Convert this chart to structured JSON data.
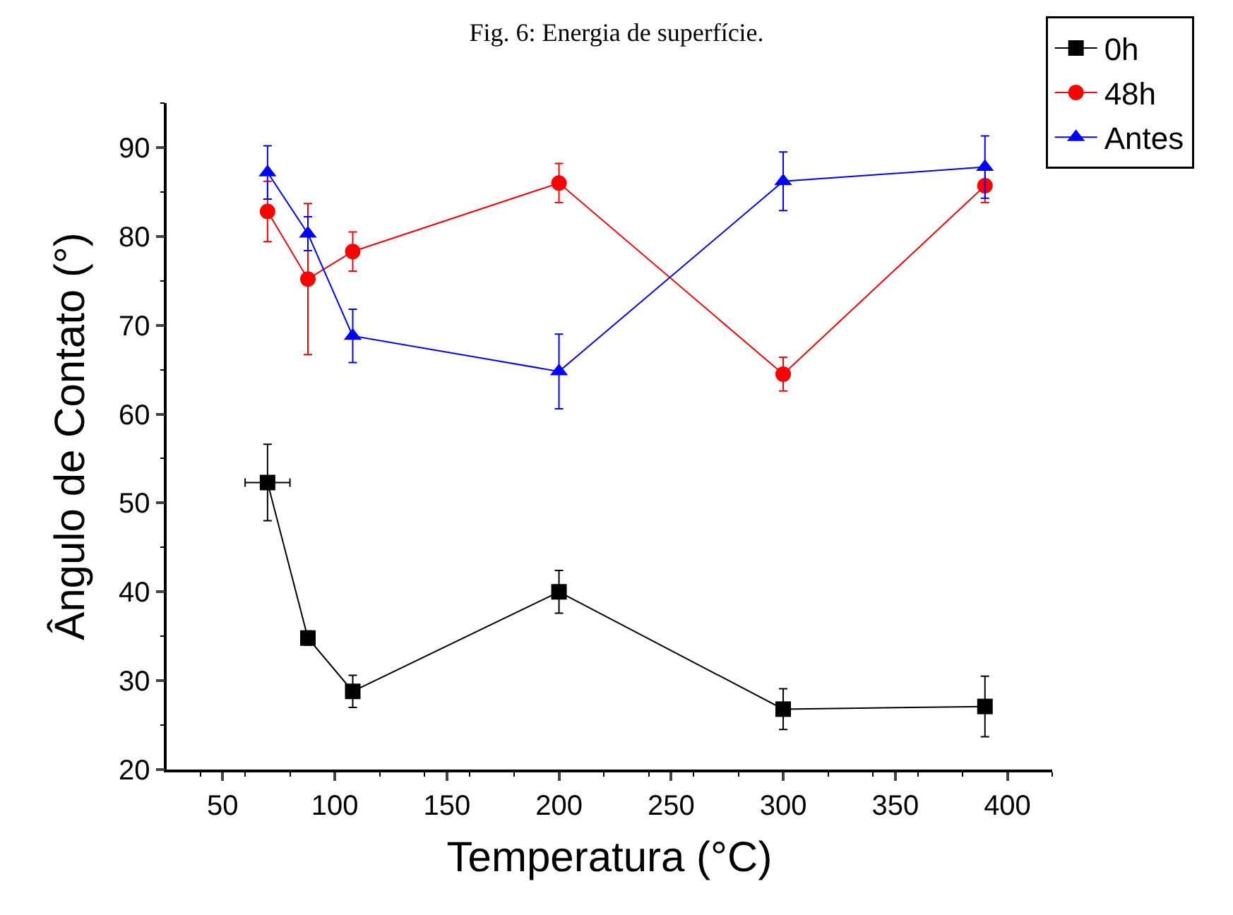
{
  "chart_data": {
    "type": "line",
    "title": "Fig. 6: Energia de superfície.",
    "xlabel": "Temperatura (°C)",
    "ylabel": "Ângulo de Contato (°)",
    "x": [
      70,
      88,
      108,
      200,
      300,
      390
    ],
    "series": [
      {
        "name": "0h",
        "color": "#000000",
        "marker": "square",
        "values": [
          52.3,
          34.8,
          28.8,
          40.0,
          26.8,
          27.1
        ],
        "errors": [
          4.3,
          0.8,
          1.8,
          2.4,
          2.3,
          3.4
        ],
        "xerrors": [
          10,
          null,
          null,
          null,
          null,
          null
        ]
      },
      {
        "name": "48h",
        "color": "#ff0000",
        "marker": "circle",
        "values": [
          82.8,
          75.2,
          78.3,
          86.0,
          64.5,
          85.7
        ],
        "errors": [
          3.4,
          8.5,
          2.2,
          2.2,
          1.9,
          1.9
        ]
      },
      {
        "name": "Antes",
        "color": "#0000ff",
        "marker": "triangle",
        "values": [
          87.2,
          80.3,
          68.8,
          64.8,
          86.2,
          87.8
        ],
        "errors": [
          3.0,
          1.9,
          3.0,
          4.2,
          3.3,
          3.5
        ]
      }
    ],
    "xlim": [
      25,
      420
    ],
    "xticks": [
      50,
      100,
      150,
      200,
      250,
      300,
      350,
      400
    ],
    "ylim": [
      20,
      95
    ],
    "yticks": [
      20,
      30,
      40,
      50,
      60,
      70,
      80,
      90
    ],
    "legend": "top right",
    "line_style": "solid"
  }
}
